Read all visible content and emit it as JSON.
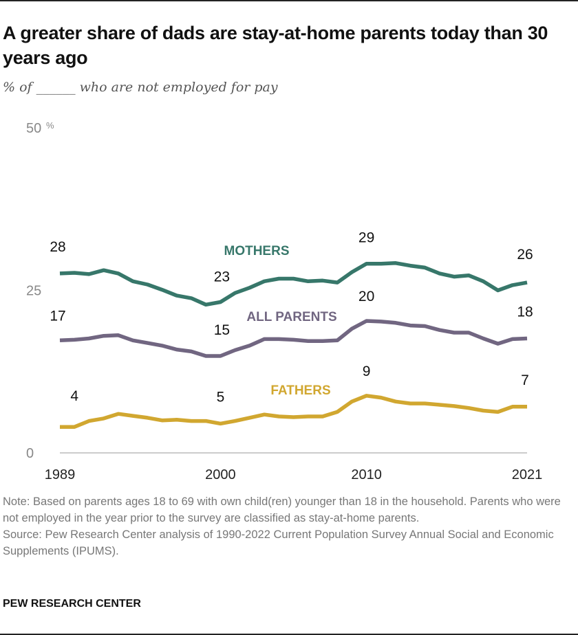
{
  "title": "A greater share of dads are stay-at-home parents today than 30 years ago",
  "subtitle": "% of ______ who are not employed for pay",
  "chart_data": {
    "type": "line",
    "ylim": [
      0,
      50
    ],
    "xlim": [
      1989,
      2021
    ],
    "y_ticks": [
      "0",
      "25",
      "50"
    ],
    "y_unit": "%",
    "x_ticks": [
      "1989",
      "2000",
      "2010",
      "2021"
    ],
    "grid": false,
    "x": [
      1989,
      1990,
      1991,
      1992,
      1993,
      1994,
      1995,
      1996,
      1997,
      1998,
      1999,
      2000,
      2001,
      2002,
      2003,
      2004,
      2005,
      2006,
      2007,
      2008,
      2009,
      2010,
      2011,
      2012,
      2013,
      2014,
      2015,
      2016,
      2017,
      2018,
      2019,
      2020,
      2021
    ],
    "series": [
      {
        "name": "MOTHERS",
        "color": "#37776a",
        "values": [
          27.6,
          27.7,
          27.5,
          28.1,
          27.6,
          26.4,
          25.9,
          25.1,
          24.2,
          23.8,
          22.8,
          23.2,
          24.6,
          25.4,
          26.4,
          26.8,
          26.8,
          26.4,
          26.5,
          26.2,
          27.8,
          29.1,
          29.1,
          29.2,
          28.8,
          28.5,
          27.6,
          27.1,
          27.3,
          26.4,
          25.0,
          25.8,
          26.2
        ],
        "labels": [
          {
            "year": 1989,
            "text": "28"
          },
          {
            "year": 2000,
            "text": "23"
          },
          {
            "year": 2010,
            "text": "29"
          },
          {
            "year": 2021,
            "text": "26"
          }
        ]
      },
      {
        "name": "ALL PARENTS",
        "color": "#716681",
        "values": [
          17.3,
          17.4,
          17.6,
          18.0,
          18.1,
          17.3,
          16.9,
          16.5,
          15.9,
          15.6,
          14.9,
          14.9,
          15.8,
          16.5,
          17.5,
          17.5,
          17.4,
          17.2,
          17.2,
          17.3,
          19.1,
          20.3,
          20.2,
          20.0,
          19.6,
          19.5,
          18.9,
          18.5,
          18.5,
          17.6,
          16.8,
          17.5,
          17.6
        ],
        "labels": [
          {
            "year": 1989,
            "text": "17"
          },
          {
            "year": 2000,
            "text": "15"
          },
          {
            "year": 2010,
            "text": "20"
          },
          {
            "year": 2021,
            "text": "18"
          }
        ]
      },
      {
        "name": "FATHERS",
        "color": "#d1a730",
        "values": [
          4.0,
          4.0,
          4.9,
          5.3,
          6.0,
          5.7,
          5.4,
          5.0,
          5.1,
          4.9,
          4.9,
          4.5,
          4.9,
          5.4,
          5.9,
          5.6,
          5.5,
          5.6,
          5.6,
          6.3,
          7.9,
          8.8,
          8.5,
          7.9,
          7.6,
          7.6,
          7.4,
          7.2,
          6.9,
          6.5,
          6.3,
          7.1,
          7.1
        ],
        "labels": [
          {
            "year": 1990,
            "text": "4"
          },
          {
            "year": 2000,
            "text": "5"
          },
          {
            "year": 2010,
            "text": "9"
          },
          {
            "year": 2021,
            "text": "7"
          }
        ]
      }
    ]
  },
  "note": "Note: Based on parents ages 18 to 69 with own child(ren) younger than 18 in the household. Parents who were not employed in the year prior to the survey are classified as stay-at-home parents.",
  "source": "Source: Pew Research Center analysis of 1990-2022 Current Population Survey Annual Social and Economic Supplements (IPUMS).",
  "brand": "PEW RESEARCH CENTER"
}
